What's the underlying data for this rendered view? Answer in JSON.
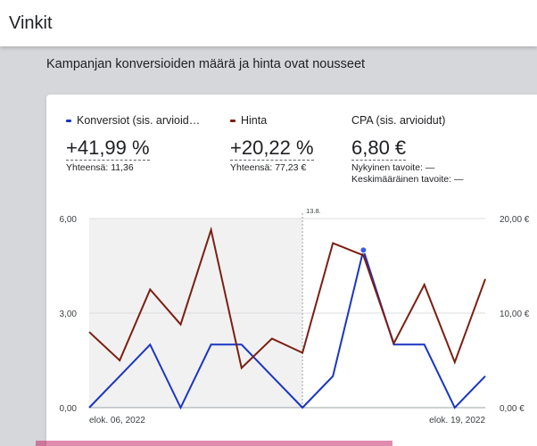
{
  "header": {
    "title": "Vinkit"
  },
  "subtitle": "Kampanjan konversioiden määrä ja hinta ovat nousseet",
  "metrics": {
    "conversions": {
      "label": "Konversiot (sis. arvioid…",
      "value": "+41,99 %",
      "sub": "Yhteensä: 11,36",
      "color": "#1a35c4"
    },
    "cost": {
      "label": "Hinta",
      "value": "+20,22 %",
      "sub": "Yhteensä: 77,23 €",
      "color": "#7b1f12"
    },
    "cpa": {
      "label": "CPA (sis. arvioidut)",
      "value": "6,80 €",
      "sub1": "Nykyinen tavoite: —",
      "sub2": "Keskimääräinen tavoite: —"
    }
  },
  "chart_data": {
    "type": "line",
    "x": [
      "elok. 06, 2022",
      "",
      "",
      "",
      "",
      "",
      "",
      "",
      "",
      "",
      "",
      "",
      "",
      "elok. 19, 2022"
    ],
    "x_tick_labels": [
      "elok. 06, 2022",
      "elok. 19, 2022"
    ],
    "marker_label": "13.8.",
    "marker_index": 7,
    "shaded_range_index": [
      0,
      7
    ],
    "y_left": {
      "ticks": [
        "0,00",
        "3,00",
        "6,00"
      ],
      "ylim": [
        0,
        6
      ]
    },
    "y_right": {
      "ticks": [
        "0,00 €",
        "10,00 €",
        "20,00 €"
      ],
      "ylim": [
        0,
        20
      ]
    },
    "series": [
      {
        "name": "Konversiot (sis. arvioid…",
        "axis": "left",
        "color": "#1a35c4",
        "values": [
          0,
          1,
          2,
          0,
          2,
          2,
          1,
          0,
          1,
          5,
          2,
          2,
          0,
          1
        ]
      },
      {
        "name": "Hinta",
        "axis": "right",
        "color": "#7b1f12",
        "values": [
          8,
          5,
          12.5,
          8.8,
          18.8,
          4.2,
          7.3,
          5.8,
          17.4,
          16.1,
          6.8,
          13,
          4.8,
          13.6
        ]
      }
    ],
    "highlight_point_index": 9
  }
}
